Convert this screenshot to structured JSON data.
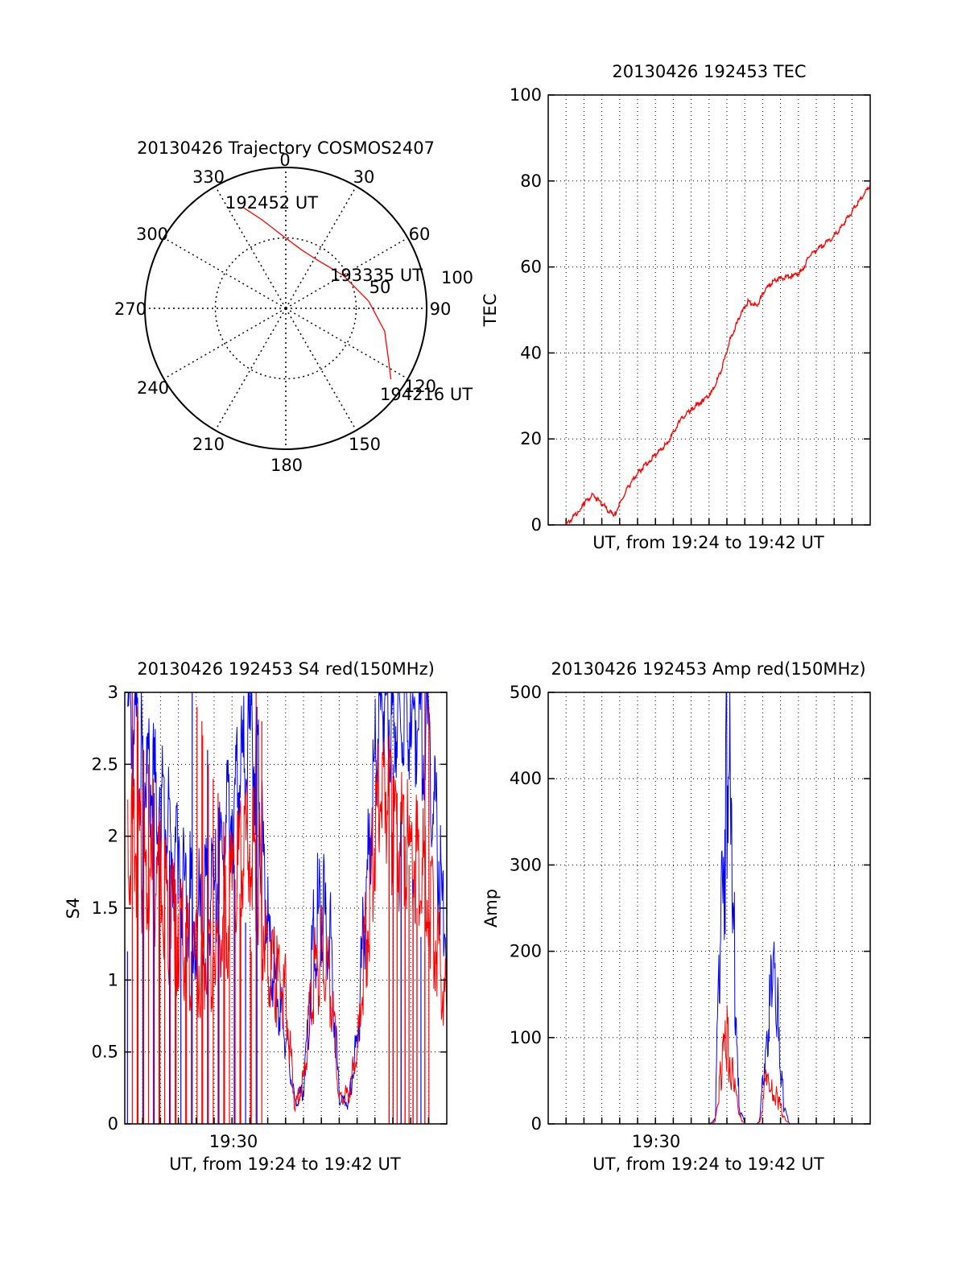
{
  "chart_data": [
    {
      "type": "scatter",
      "projection": "polar",
      "title": "20130426 Trajectory COSMOS2407",
      "angle_labels": [
        "0",
        "30",
        "60",
        "90",
        "120",
        "150",
        "180",
        "210",
        "240",
        "270",
        "300",
        "330"
      ],
      "radial_labels": [
        "50",
        "100"
      ],
      "rlim": [
        0,
        100
      ],
      "grid": true,
      "series": [
        {
          "color": "#ff0000",
          "points": [
            {
              "azimuth": 337,
              "zenith": 78
            },
            {
              "azimuth": 345,
              "zenith": 65
            },
            {
              "azimuth": 357,
              "zenith": 52
            },
            {
              "azimuth": 15,
              "zenith": 43
            },
            {
              "azimuth": 35,
              "zenith": 41
            },
            {
              "azimuth": 60,
              "zenith": 47
            },
            {
              "azimuth": 85,
              "zenith": 59
            },
            {
              "azimuth": 103,
              "zenith": 72
            },
            {
              "azimuth": 118,
              "zenith": 83
            },
            {
              "azimuth": 124,
              "zenith": 90
            }
          ]
        }
      ],
      "annotations": [
        {
          "text": "192452 UT",
          "azimuth": 335,
          "zenith": 82
        },
        {
          "text": "193335 UT",
          "azimuth": 75,
          "zenith": 77
        },
        {
          "text": "194216 UT",
          "azimuth": 121,
          "zenith": 128
        }
      ]
    },
    {
      "type": "line",
      "title": "20130426 192453 TEC",
      "xlabel": "UT, from 19:24 to 19:42 UT",
      "ylabel": "TEC",
      "xlim": [
        "19:24",
        "19:42"
      ],
      "ylim": [
        0,
        100
      ],
      "yticks": [
        "0",
        "20",
        "40",
        "60",
        "80",
        "100"
      ],
      "grid": true,
      "series": [
        {
          "color": "#ff0000",
          "x": [
            "19:25:00",
            "19:25:40",
            "19:26:00",
            "19:26:30",
            "19:27:00",
            "19:27:40",
            "19:28:30",
            "19:29:00",
            "19:29:40",
            "19:30:10",
            "19:30:40",
            "19:31:20",
            "19:32:00",
            "19:32:40",
            "19:33:10",
            "19:33:40",
            "19:34:10",
            "19:34:40",
            "19:35:10",
            "19:35:40",
            "19:36:10",
            "19:36:40",
            "19:37:40",
            "19:38:10",
            "19:38:40",
            "19:39:40",
            "19:40:10",
            "19:40:40",
            "19:41:10",
            "19:42:00"
          ],
          "values": [
            0,
            3,
            5,
            7,
            5,
            2,
            9,
            12,
            15,
            17,
            19,
            24,
            27,
            29,
            31,
            36,
            43,
            48,
            52,
            51,
            55,
            57,
            58,
            59,
            63,
            66,
            68,
            71,
            74,
            79
          ]
        }
      ]
    },
    {
      "type": "line",
      "title": "20130426 192453 S4 red(150MHz)",
      "xlabel": "UT, from 19:24 to 19:42 UT",
      "ylabel": "S4",
      "xlim": [
        "19:24",
        "19:42"
      ],
      "ylim": [
        0,
        3
      ],
      "yticks": [
        "0",
        "0.5",
        "1",
        "1.5",
        "2",
        "2.5",
        "3"
      ],
      "xticks": [
        "19:30"
      ],
      "grid": true,
      "series": [
        {
          "color": "#0000ff",
          "x": [
            "19:24:10",
            "19:25:00",
            "19:26:00",
            "19:27:00",
            "19:28:00",
            "19:29:00",
            "19:30:00",
            "19:31:00",
            "19:31:30",
            "19:32:00",
            "19:32:30",
            "19:33:00",
            "19:33:30",
            "19:34:00",
            "19:34:30",
            "19:35:00",
            "19:35:30",
            "19:36:00",
            "19:36:30",
            "19:37:00",
            "19:37:30",
            "19:38:00",
            "19:38:30",
            "19:39:00",
            "19:40:00",
            "19:41:00",
            "19:42:00"
          ],
          "values": [
            2.9,
            2.5,
            2.2,
            1.8,
            1.4,
            1.6,
            2.2,
            2.7,
            2.3,
            1.3,
            0.9,
            0.6,
            0.15,
            0.25,
            1.2,
            1.6,
            1.2,
            0.15,
            0.15,
            0.6,
            1.6,
            2.6,
            3.0,
            2.8,
            2.9,
            2.6,
            1.2
          ]
        },
        {
          "color": "#ff0000",
          "x": [
            "19:24:10",
            "19:25:00",
            "19:26:00",
            "19:27:00",
            "19:28:00",
            "19:29:00",
            "19:30:00",
            "19:31:00",
            "19:31:30",
            "19:32:00",
            "19:32:30",
            "19:33:00",
            "19:33:30",
            "19:34:00",
            "19:34:30",
            "19:35:00",
            "19:35:30",
            "19:36:00",
            "19:36:30",
            "19:37:00",
            "19:37:30",
            "19:38:00",
            "19:38:30",
            "19:39:00",
            "19:40:00",
            "19:41:00",
            "19:42:00"
          ],
          "values": [
            2.0,
            1.8,
            1.6,
            1.3,
            1.1,
            1.2,
            1.6,
            2.0,
            1.7,
            1.1,
            1.0,
            0.9,
            0.12,
            0.3,
            1.0,
            1.2,
            1.0,
            0.2,
            0.2,
            0.5,
            1.3,
            2.1,
            2.4,
            2.0,
            1.9,
            1.6,
            0.8
          ]
        }
      ]
    },
    {
      "type": "line",
      "title": "20130426 192453 Amp red(150MHz)",
      "xlabel": "UT, from 19:24 to 19:42 UT",
      "ylabel": "Amp",
      "xlim": [
        "19:24",
        "19:42"
      ],
      "ylim": [
        0,
        500
      ],
      "yticks": [
        "0",
        "100",
        "200",
        "300",
        "400",
        "500"
      ],
      "xticks": [
        "19:30"
      ],
      "grid": true,
      "series": [
        {
          "color": "#0000ff",
          "x": [
            "19:25:00",
            "19:33:00",
            "19:33:20",
            "19:33:40",
            "19:34:00",
            "19:34:20",
            "19:34:40",
            "19:35:00",
            "19:35:40",
            "19:35:50",
            "19:36:10",
            "19:36:30",
            "19:36:50",
            "19:37:10",
            "19:37:30",
            "19:38:00",
            "19:42:00"
          ],
          "values": [
            0,
            0,
            5,
            250,
            440,
            250,
            20,
            0,
            0,
            5,
            100,
            150,
            140,
            20,
            0,
            0,
            0
          ]
        },
        {
          "color": "#ff0000",
          "x": [
            "19:25:00",
            "19:33:00",
            "19:33:20",
            "19:33:40",
            "19:34:00",
            "19:34:20",
            "19:34:40",
            "19:35:00",
            "19:35:40",
            "19:35:50",
            "19:36:10",
            "19:36:30",
            "19:36:50",
            "19:37:10",
            "19:37:30",
            "19:38:00",
            "19:42:00"
          ],
          "values": [
            0,
            0,
            3,
            60,
            95,
            60,
            10,
            0,
            0,
            3,
            45,
            40,
            30,
            8,
            0,
            0,
            0
          ]
        }
      ]
    }
  ]
}
